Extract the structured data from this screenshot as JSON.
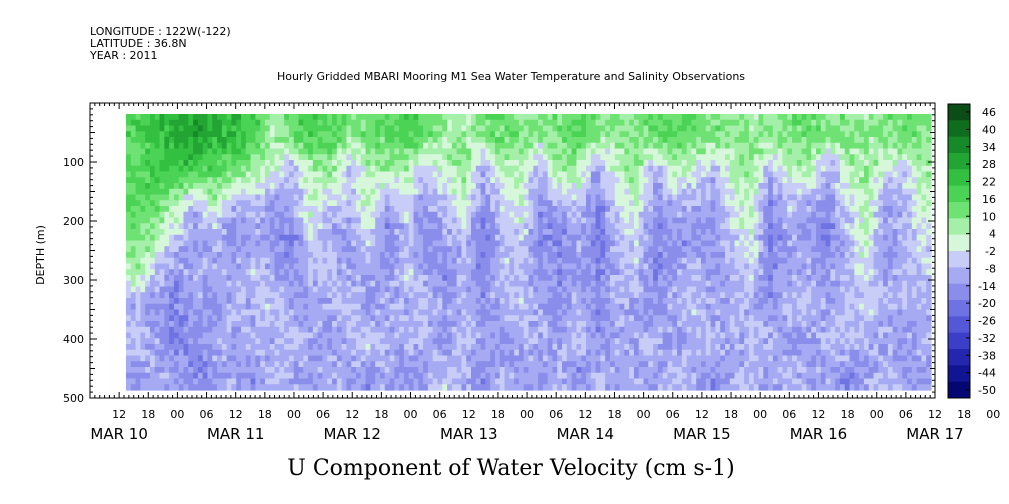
{
  "header": {
    "line1": "LONGITUDE : 122W(-122)",
    "line2": "LATITUDE : 36.8N",
    "line3": "YEAR : 2011",
    "title": "Hourly Gridded MBARI Mooring M1 Sea Water Temperature and Salinity Observations"
  },
  "chart_data": {
    "type": "heatmap",
    "title": "U Component of Water Velocity (cm s-1)",
    "ylabel": "DEPTH (m)",
    "ylim": [
      500,
      0
    ],
    "y_ticks": [
      "100",
      "200",
      "300",
      "400",
      "500"
    ],
    "x_hour_labels": [
      "12",
      "18",
      "00",
      "06",
      "12",
      "18",
      "00",
      "06",
      "12",
      "18",
      "00",
      "06",
      "12",
      "18",
      "00",
      "06",
      "12",
      "18",
      "00",
      "06",
      "12",
      "18",
      "00",
      "06",
      "12",
      "18",
      "00",
      "06",
      "12",
      "18",
      "00",
      "06"
    ],
    "x_day_labels": [
      "MAR 10",
      "MAR 11",
      "MAR 12",
      "MAR 13",
      "MAR 14",
      "MAR 15",
      "MAR 16",
      "MAR 17"
    ],
    "colorbar_ticks": [
      "46",
      "40",
      "34",
      "28",
      "22",
      "16",
      "10",
      "4",
      "-2",
      "-8",
      "-14",
      "-20",
      "-26",
      "-32",
      "-38",
      "-44",
      "-50"
    ],
    "colorbar_colors": [
      "#0b4d16",
      "#0f6e1e",
      "#168a28",
      "#22a533",
      "#33c040",
      "#4bd356",
      "#6fe274",
      "#a4f0a8",
      "#d7f7da",
      "#c8cdf7",
      "#a6aaf2",
      "#8a8eea",
      "#6f72e2",
      "#5457d6",
      "#3b3ec6",
      "#2426ae",
      "#111593",
      "#040672"
    ],
    "data_description_columns": 16,
    "u_velocity_grid": [
      [
        18,
        22,
        28,
        30,
        26,
        24,
        20,
        6,
        14,
        20,
        16,
        10,
        12,
        16,
        20,
        14,
        8,
        6,
        10,
        14,
        10,
        8,
        12,
        16,
        10,
        8,
        12,
        14,
        16,
        14,
        12,
        10,
        8,
        10,
        12,
        14,
        10,
        12,
        8,
        10,
        14,
        10
      ],
      [
        14,
        20,
        22,
        18,
        16,
        14,
        10,
        2,
        -8,
        4,
        10,
        -6,
        4,
        8,
        6,
        -6,
        2,
        8,
        -10,
        6,
        4,
        -8,
        10,
        6,
        -12,
        4,
        8,
        -10,
        6,
        2,
        -6,
        4,
        10,
        -8,
        4,
        6,
        -10,
        4,
        8,
        2,
        -4,
        6
      ],
      [
        16,
        14,
        6,
        -8,
        4,
        -10,
        -6,
        -12,
        -10,
        2,
        -4,
        -8,
        6,
        -12,
        -2,
        -14,
        -6,
        4,
        -16,
        -4,
        2,
        -14,
        -10,
        -6,
        -18,
        -4,
        2,
        -16,
        -8,
        -10,
        -14,
        -2,
        4,
        -18,
        -6,
        -10,
        -16,
        -4,
        6,
        -12,
        -8,
        2
      ],
      [
        12,
        4,
        -6,
        -14,
        -8,
        -16,
        -12,
        -14,
        -18,
        -4,
        -10,
        -14,
        -2,
        -18,
        -8,
        -16,
        -12,
        -6,
        -20,
        -8,
        -4,
        -16,
        -18,
        -10,
        -20,
        -8,
        -2,
        -18,
        -14,
        -16,
        -12,
        -6,
        2,
        -20,
        -10,
        -14,
        -18,
        -8,
        4,
        -14,
        -10,
        -2
      ],
      [
        4,
        -8,
        -14,
        -6,
        -12,
        -10,
        -4,
        -12,
        -16,
        -8,
        -6,
        -12,
        -10,
        -14,
        -4,
        -12,
        -16,
        -10,
        -18,
        -6,
        -8,
        -14,
        -16,
        -12,
        -18,
        -10,
        -6,
        -16,
        -12,
        -8,
        -14,
        -10,
        -4,
        -16,
        -12,
        -10,
        -14,
        -6,
        -2,
        -12,
        -8,
        -6
      ],
      [
        -10,
        -14,
        -18,
        -12,
        -16,
        -8,
        -10,
        -4,
        -12,
        -14,
        -10,
        -6,
        -14,
        -8,
        -10,
        -6,
        -12,
        -8,
        -14,
        -10,
        -6,
        -12,
        -14,
        -10,
        -16,
        -8,
        -12,
        -14,
        -10,
        -6,
        -12,
        -8,
        -10,
        -14,
        -8,
        -6,
        -12,
        -10,
        -4,
        -8,
        -10,
        -12
      ],
      [
        -6,
        -12,
        -20,
        -16,
        -10,
        -14,
        -8,
        -12,
        -6,
        -10,
        -14,
        -8,
        -4,
        -12,
        -10,
        -8,
        -14,
        -6,
        -12,
        -16,
        -10,
        -8,
        -12,
        -6,
        -14,
        -12,
        -10,
        -8,
        -14,
        -10,
        -6,
        -12,
        -8,
        -10,
        -14,
        -12,
        -8,
        -6,
        -10,
        -12,
        -14,
        -8
      ],
      [
        -14,
        -8,
        -12,
        -18,
        -14,
        -10,
        -16,
        -6,
        -10,
        -14,
        -8,
        -12,
        -16,
        -10,
        -14,
        -12,
        -6,
        -10,
        -16,
        -8,
        -12,
        -14,
        -10,
        -16,
        -8,
        -12,
        -10,
        -14,
        -6,
        -12,
        -16,
        -10,
        -8,
        -12,
        -6,
        -14,
        -10,
        -16,
        -12,
        -8,
        -10,
        -14
      ]
    ]
  }
}
